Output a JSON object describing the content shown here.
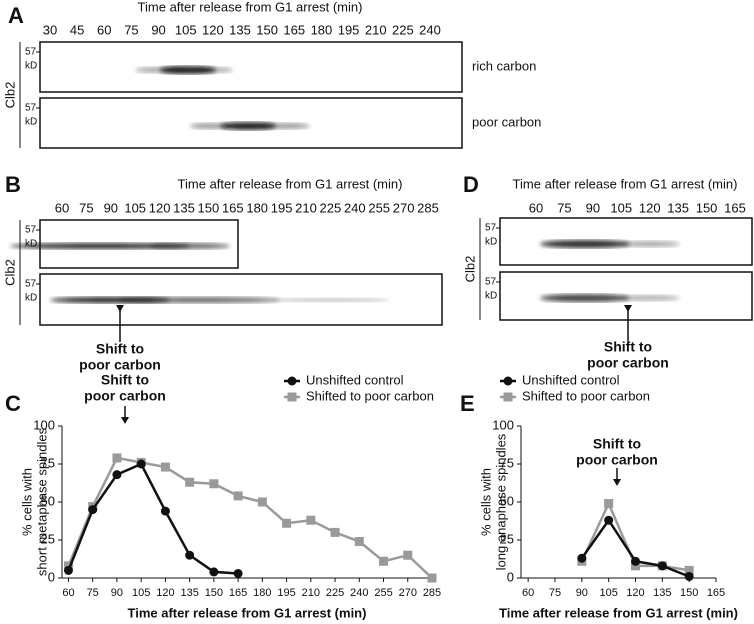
{
  "panels": {
    "A": {
      "label": "A",
      "title": "Time after release from G1 arrest (min)",
      "protein": "Clb2",
      "lanes": [
        30,
        45,
        60,
        75,
        90,
        105,
        120,
        135,
        150,
        165,
        180,
        195,
        210,
        225,
        240
      ],
      "blots": [
        {
          "marker": "57",
          "unit": "kD",
          "condition": "rich carbon"
        },
        {
          "marker": "57",
          "unit": "kD",
          "condition": "poor carbon"
        }
      ]
    },
    "B": {
      "label": "B",
      "title": "Time after release from G1 arrest (min)",
      "protein": "Clb2",
      "lanes": [
        60,
        75,
        90,
        105,
        120,
        135,
        150,
        165,
        180,
        195,
        210,
        225,
        240,
        255,
        270,
        285
      ],
      "blots": [
        {
          "marker": "57",
          "unit": "kD"
        },
        {
          "marker": "57",
          "unit": "kD"
        }
      ],
      "annotation": [
        "Shift to",
        "poor carbon"
      ]
    },
    "D": {
      "label": "D",
      "title": "Time after release from G1 arrest (min)",
      "protein": "Clb2",
      "lanes": [
        60,
        75,
        90,
        105,
        120,
        135,
        150,
        165
      ],
      "blots": [
        {
          "marker": "57",
          "unit": "kD"
        },
        {
          "marker": "57",
          "unit": "kD"
        }
      ],
      "annotation": [
        "Shift to",
        "poor carbon"
      ]
    }
  },
  "chart_data": [
    {
      "type": "line",
      "label": "C",
      "annotation": [
        "Shift to",
        "poor carbon"
      ],
      "xlabel": "Time after release from G1 arrest (min)",
      "ylabel": [
        "% cells with",
        "short metaphase spindles"
      ],
      "xlim": [
        56,
        285
      ],
      "xticks": [
        60,
        75,
        90,
        105,
        120,
        135,
        150,
        165,
        180,
        195,
        210,
        225,
        240,
        255,
        270,
        285
      ],
      "ylim": [
        0,
        100
      ],
      "yticks": [
        0,
        25,
        50,
        75,
        100
      ],
      "series": [
        {
          "name": "Unshifted control",
          "color": "#111111",
          "marker": "circle",
          "x": [
            60,
            75,
            90,
            105,
            120,
            135,
            150,
            165
          ],
          "values": [
            5,
            45,
            68,
            75,
            44,
            15,
            4,
            3
          ]
        },
        {
          "name": "Shifted to poor carbon",
          "color": "#9a9a9a",
          "marker": "square",
          "x": [
            60,
            75,
            90,
            105,
            120,
            135,
            150,
            165,
            180,
            195,
            210,
            225,
            240,
            255,
            270,
            285
          ],
          "values": [
            8,
            47,
            79,
            76,
            73,
            63,
            62,
            54,
            50,
            36,
            38,
            30,
            24,
            11,
            15,
            0
          ]
        }
      ]
    },
    {
      "type": "line",
      "label": "E",
      "annotation": [
        "Shift to",
        "poor carbon"
      ],
      "xlabel": "Time after release from G1 arrest (min)",
      "ylabel": [
        "% cells with",
        "long anaphase spindles"
      ],
      "xlim": [
        56,
        165
      ],
      "xticks": [
        60,
        75,
        90,
        105,
        120,
        135,
        150,
        165
      ],
      "ylim": [
        0,
        100
      ],
      "yticks": [
        0,
        25,
        50,
        75,
        100
      ],
      "series": [
        {
          "name": "Unshifted control",
          "color": "#111111",
          "marker": "circle",
          "x": [
            90,
            105,
            120,
            135,
            150
          ],
          "values": [
            13,
            38,
            11,
            8,
            1
          ]
        },
        {
          "name": "Shifted to poor carbon",
          "color": "#9a9a9a",
          "marker": "square",
          "x": [
            90,
            105,
            120,
            135,
            150
          ],
          "values": [
            11,
            49,
            8,
            8,
            5
          ]
        }
      ]
    }
  ]
}
